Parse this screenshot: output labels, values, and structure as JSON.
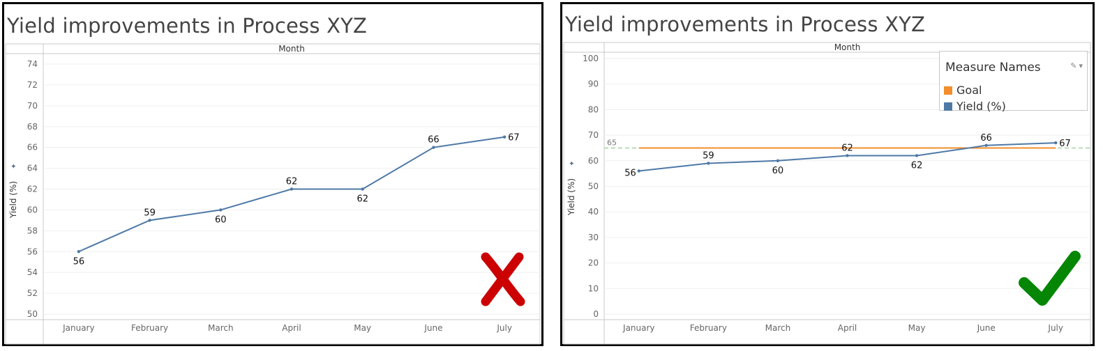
{
  "colors": {
    "yield": "#4e79a7",
    "goal": "#f28e2b",
    "goal_ref": "#a6d2a6",
    "cross": "#cc0000",
    "check": "#058705"
  },
  "panels": [
    {
      "title": "Yield improvements in Process XYZ",
      "column_header": "Month",
      "marker": "cross-icon"
    },
    {
      "title": "Yield improvements in Process XYZ",
      "column_header": "Month",
      "marker": "checkmark-icon",
      "legend": {
        "title": "Measure Names",
        "items": [
          {
            "label": "Goal",
            "color": "#f28e2b"
          },
          {
            "label": "Yield (%)",
            "color": "#4e79a7"
          }
        ]
      }
    }
  ],
  "chart_data": [
    {
      "type": "line",
      "title": "Yield improvements in Process XYZ",
      "xlabel": "Month",
      "ylabel": "Yield (%)",
      "categories": [
        "January",
        "February",
        "March",
        "April",
        "May",
        "June",
        "July"
      ],
      "series": [
        {
          "name": "Yield (%)",
          "values": [
            56,
            59,
            60,
            62,
            62,
            66,
            67
          ]
        }
      ],
      "data_labels": [
        "56",
        "59",
        "60",
        "62",
        "62",
        "66",
        "67"
      ],
      "label_position": [
        "below",
        "above",
        "below",
        "above",
        "below",
        "above",
        "right"
      ],
      "ylim": [
        50,
        74
      ],
      "yticks": [
        50,
        52,
        54,
        56,
        58,
        60,
        62,
        64,
        66,
        68,
        70,
        72,
        74
      ],
      "grid": true
    },
    {
      "type": "line",
      "title": "Yield improvements in Process XYZ",
      "xlabel": "Month",
      "ylabel": "Yield (%)",
      "categories": [
        "January",
        "February",
        "March",
        "April",
        "May",
        "June",
        "July"
      ],
      "series": [
        {
          "name": "Goal",
          "values": [
            65,
            65,
            65,
            65,
            65,
            65,
            65
          ]
        },
        {
          "name": "Yield (%)",
          "values": [
            56,
            59,
            60,
            62,
            62,
            66,
            67
          ]
        }
      ],
      "data_labels": [
        "56",
        "59",
        "60",
        "62",
        "62",
        "66",
        "67"
      ],
      "label_position": [
        "left",
        "above",
        "below",
        "above",
        "below",
        "above",
        "right"
      ],
      "reference_line": {
        "value": 65,
        "label": "65"
      },
      "ylim": [
        0,
        100
      ],
      "yticks": [
        0,
        10,
        20,
        30,
        40,
        50,
        60,
        70,
        80,
        90,
        100
      ],
      "grid": true,
      "legend": "top-right"
    }
  ]
}
